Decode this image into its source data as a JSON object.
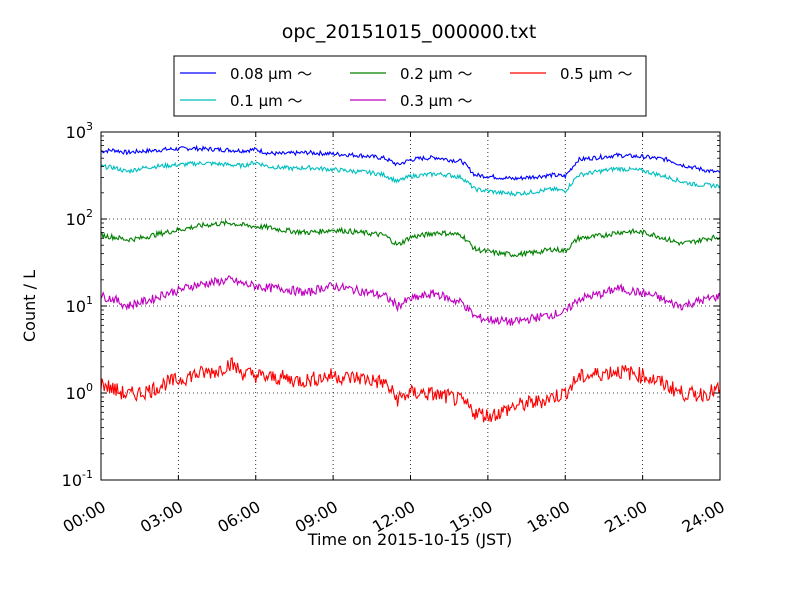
{
  "chart_data": {
    "type": "line",
    "title": "opc_20151015_000000.txt",
    "xlabel": "Time on 2015-10-15 (JST)",
    "ylabel": "Count / L",
    "y_scale": "log",
    "ylim": [
      0.1,
      1000
    ],
    "xlim": [
      "00:00",
      "24:00"
    ],
    "grid": true,
    "legend_position": "top",
    "x_ticks": [
      "00:00",
      "03:00",
      "06:00",
      "09:00",
      "12:00",
      "15:00",
      "18:00",
      "21:00",
      "24:00"
    ],
    "x_tick_hours": [
      0,
      3,
      6,
      9,
      12,
      15,
      18,
      21,
      24
    ],
    "y_ticks": [
      {
        "base": "10",
        "exp": "-1",
        "value": 0.1
      },
      {
        "base": "10",
        "exp": "0",
        "value": 1
      },
      {
        "base": "10",
        "exp": "1",
        "value": 10
      },
      {
        "base": "10",
        "exp": "2",
        "value": 100
      },
      {
        "base": "10",
        "exp": "3",
        "value": 1000
      }
    ],
    "x_hours": [
      0,
      0.5,
      1,
      1.5,
      2,
      2.5,
      3,
      3.5,
      4,
      4.5,
      5,
      5.5,
      6,
      6.5,
      7,
      7.5,
      8,
      8.5,
      9,
      9.5,
      10,
      10.5,
      11,
      11.5,
      12,
      12.5,
      13,
      13.5,
      14,
      14.5,
      15,
      15.5,
      16,
      16.5,
      17,
      17.5,
      18,
      18.5,
      19,
      19.5,
      20,
      20.5,
      21,
      21.5,
      22,
      22.5,
      23,
      23.5,
      24
    ],
    "series": [
      {
        "name": "0.08 μm ～",
        "color": "#0000ff",
        "values": [
          600,
          620,
          580,
          600,
          610,
          630,
          640,
          650,
          640,
          630,
          620,
          610,
          630,
          570,
          560,
          570,
          580,
          570,
          560,
          550,
          540,
          520,
          500,
          420,
          480,
          500,
          510,
          480,
          460,
          320,
          310,
          300,
          290,
          300,
          310,
          320,
          310,
          480,
          500,
          520,
          540,
          530,
          520,
          500,
          480,
          420,
          390,
          360,
          340
        ]
      },
      {
        "name": "0.1 μm ～",
        "color": "#00bfbf",
        "values": [
          400,
          390,
          350,
          380,
          400,
          410,
          420,
          430,
          440,
          430,
          420,
          410,
          450,
          400,
          390,
          380,
          390,
          380,
          370,
          360,
          350,
          340,
          320,
          270,
          310,
          320,
          330,
          320,
          300,
          220,
          210,
          200,
          195,
          200,
          210,
          220,
          210,
          320,
          340,
          360,
          380,
          370,
          360,
          330,
          300,
          270,
          250,
          245,
          240
        ]
      },
      {
        "name": "0.2 μm ～",
        "color": "#008000",
        "values": [
          65,
          62,
          58,
          60,
          65,
          70,
          75,
          80,
          85,
          88,
          90,
          85,
          82,
          80,
          75,
          72,
          70,
          72,
          75,
          73,
          70,
          68,
          65,
          50,
          62,
          65,
          70,
          68,
          65,
          45,
          42,
          40,
          39,
          40,
          42,
          45,
          43,
          60,
          62,
          65,
          70,
          72,
          70,
          65,
          58,
          52,
          55,
          60,
          62
        ]
      },
      {
        "name": "0.3 μm ～",
        "color": "#bf00bf",
        "values": [
          13,
          12,
          10,
          11,
          12,
          14,
          15,
          17,
          18,
          19,
          20,
          18,
          17,
          16,
          16,
          15,
          14,
          16,
          17,
          16,
          15,
          14,
          13,
          10,
          12,
          13,
          14,
          12,
          11,
          7.5,
          7,
          6.8,
          6.5,
          7,
          7.5,
          8,
          8.5,
          12,
          13,
          14,
          16,
          15,
          14,
          13,
          11,
          10,
          11,
          12,
          13
        ]
      },
      {
        "name": "0.5 μm ～",
        "color": "#ff0000",
        "values": [
          1.3,
          1.1,
          0.95,
          1.0,
          1.1,
          1.3,
          1.4,
          1.6,
          1.7,
          1.8,
          2.2,
          1.7,
          1.6,
          1.5,
          1.5,
          1.4,
          1.4,
          1.5,
          1.6,
          1.5,
          1.5,
          1.4,
          1.3,
          0.85,
          1.0,
          1.0,
          0.95,
          0.9,
          0.8,
          0.6,
          0.55,
          0.6,
          0.7,
          0.75,
          0.8,
          0.9,
          1.0,
          1.5,
          1.6,
          1.7,
          1.8,
          1.7,
          1.6,
          1.4,
          1.2,
          1.0,
          0.95,
          1.0,
          1.1
        ]
      }
    ]
  }
}
